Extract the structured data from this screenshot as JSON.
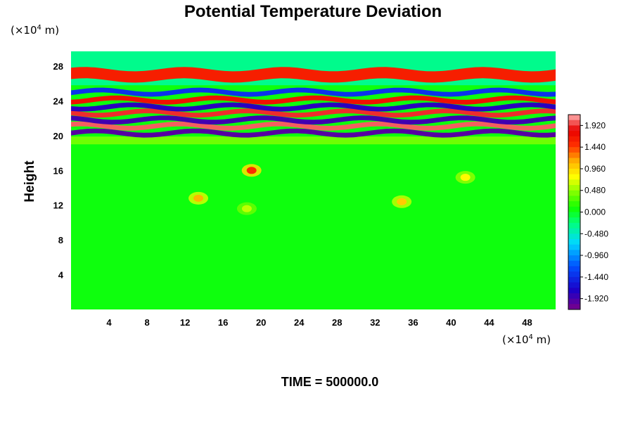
{
  "chart_data": {
    "type": "heatmap",
    "title": "Potential Temperature Deviation",
    "ylabel": "Height",
    "y_unit": {
      "prefix": "(×10",
      "exponent": "4",
      "suffix": " m)"
    },
    "x_unit": {
      "prefix": "(×10",
      "exponent": "4",
      "suffix": " m)"
    },
    "xlim": [
      0,
      51
    ],
    "ylim": [
      0,
      29.7
    ],
    "x_ticks": [
      "4",
      "8",
      "12",
      "16",
      "20",
      "24",
      "28",
      "32",
      "36",
      "40",
      "44",
      "48"
    ],
    "y_ticks": [
      "4",
      "8",
      "12",
      "16",
      "20",
      "24",
      "28"
    ],
    "colorbar": {
      "min": -2.16,
      "max": 2.16,
      "labels": [
        "1.920",
        "1.440",
        "0.960",
        "0.480",
        "0.000",
        "-0.480",
        "-0.960",
        "-1.440",
        "-1.920"
      ]
    },
    "stratosphere_bands": [
      {
        "y": 20.3,
        "value": -2.0
      },
      {
        "y": 21.1,
        "value": 2.0
      },
      {
        "y": 21.8,
        "value": -1.9
      },
      {
        "y": 22.6,
        "value": 1.9
      },
      {
        "y": 23.3,
        "value": -1.8
      },
      {
        "y": 24.1,
        "value": 1.7
      },
      {
        "y": 25.0,
        "value": -1.4
      },
      {
        "y": 27.0,
        "value": 1.6
      }
    ],
    "features": [
      {
        "x": 19.0,
        "y": 16.0,
        "value": 1.5
      },
      {
        "x": 13.4,
        "y": 12.8,
        "value": 1.1
      },
      {
        "x": 34.8,
        "y": 12.4,
        "value": 1.0
      },
      {
        "x": 41.5,
        "y": 15.2,
        "value": 0.8
      },
      {
        "x": 18.5,
        "y": 11.6,
        "value": 0.6
      }
    ],
    "grid": false,
    "legend": "right"
  },
  "footer": {
    "time_label": "TIME = 500000.0"
  }
}
